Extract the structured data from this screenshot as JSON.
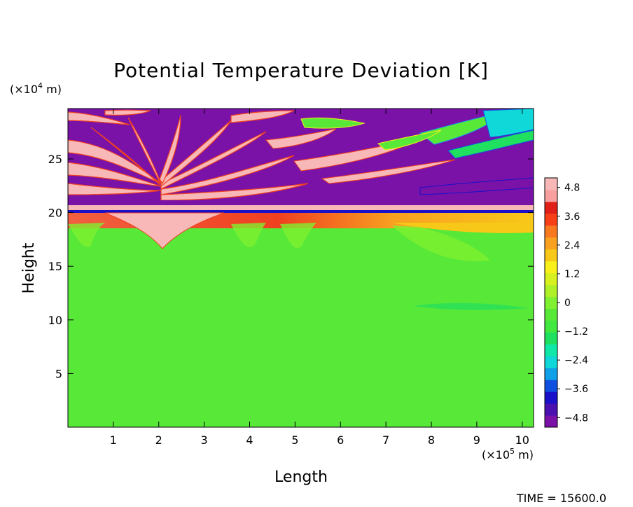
{
  "chart_data": {
    "type": "heatmap",
    "title": "Potential Temperature Deviation [K]",
    "xlabel": "Length",
    "ylabel": "Height",
    "x_scale_label": "(×10⁵ m)",
    "x_scale": {
      "prefix": "(×10",
      "exp": "5",
      "suffix": " m)"
    },
    "y_scale": {
      "prefix": "(×10",
      "exp": "4",
      "suffix": " m)"
    },
    "xlim": [
      0,
      10.25
    ],
    "ylim": [
      0,
      29.7
    ],
    "xticks": [
      1,
      2,
      3,
      4,
      5,
      6,
      7,
      8,
      9,
      10
    ],
    "yticks": [
      5,
      10,
      15,
      20,
      25
    ],
    "colorbar": {
      "range": [
        -5.2,
        5.2
      ],
      "ticks": [
        "4.8",
        "3.6",
        "2.4",
        "1.2",
        "0",
        "−1.2",
        "−2.4",
        "−3.6",
        "−4.8"
      ],
      "tick_values": [
        4.8,
        3.6,
        2.4,
        1.2,
        0,
        -1.2,
        -2.4,
        -3.6,
        -4.8
      ],
      "colors": [
        "#7a12a8",
        "#4a10b0",
        "#1a10c8",
        "#1050e0",
        "#10a0e8",
        "#10d8d8",
        "#10e8a8",
        "#20e060",
        "#40e840",
        "#58e838",
        "#80f030",
        "#b0f028",
        "#d8f020",
        "#f8f018",
        "#f8c818",
        "#f8a020",
        "#f87820",
        "#f84018",
        "#e02018",
        "#f8a0a0",
        "#f8b8b8"
      ]
    },
    "annotation": "TIME =  15600.0",
    "field_description_values": {
      "lower_troposphere_K": 0.3,
      "tropopause_warm_band_K": 2.8,
      "stratosphere_wave_range_K": [
        -4.8,
        4.8
      ],
      "tropopause_height": 20
    }
  }
}
